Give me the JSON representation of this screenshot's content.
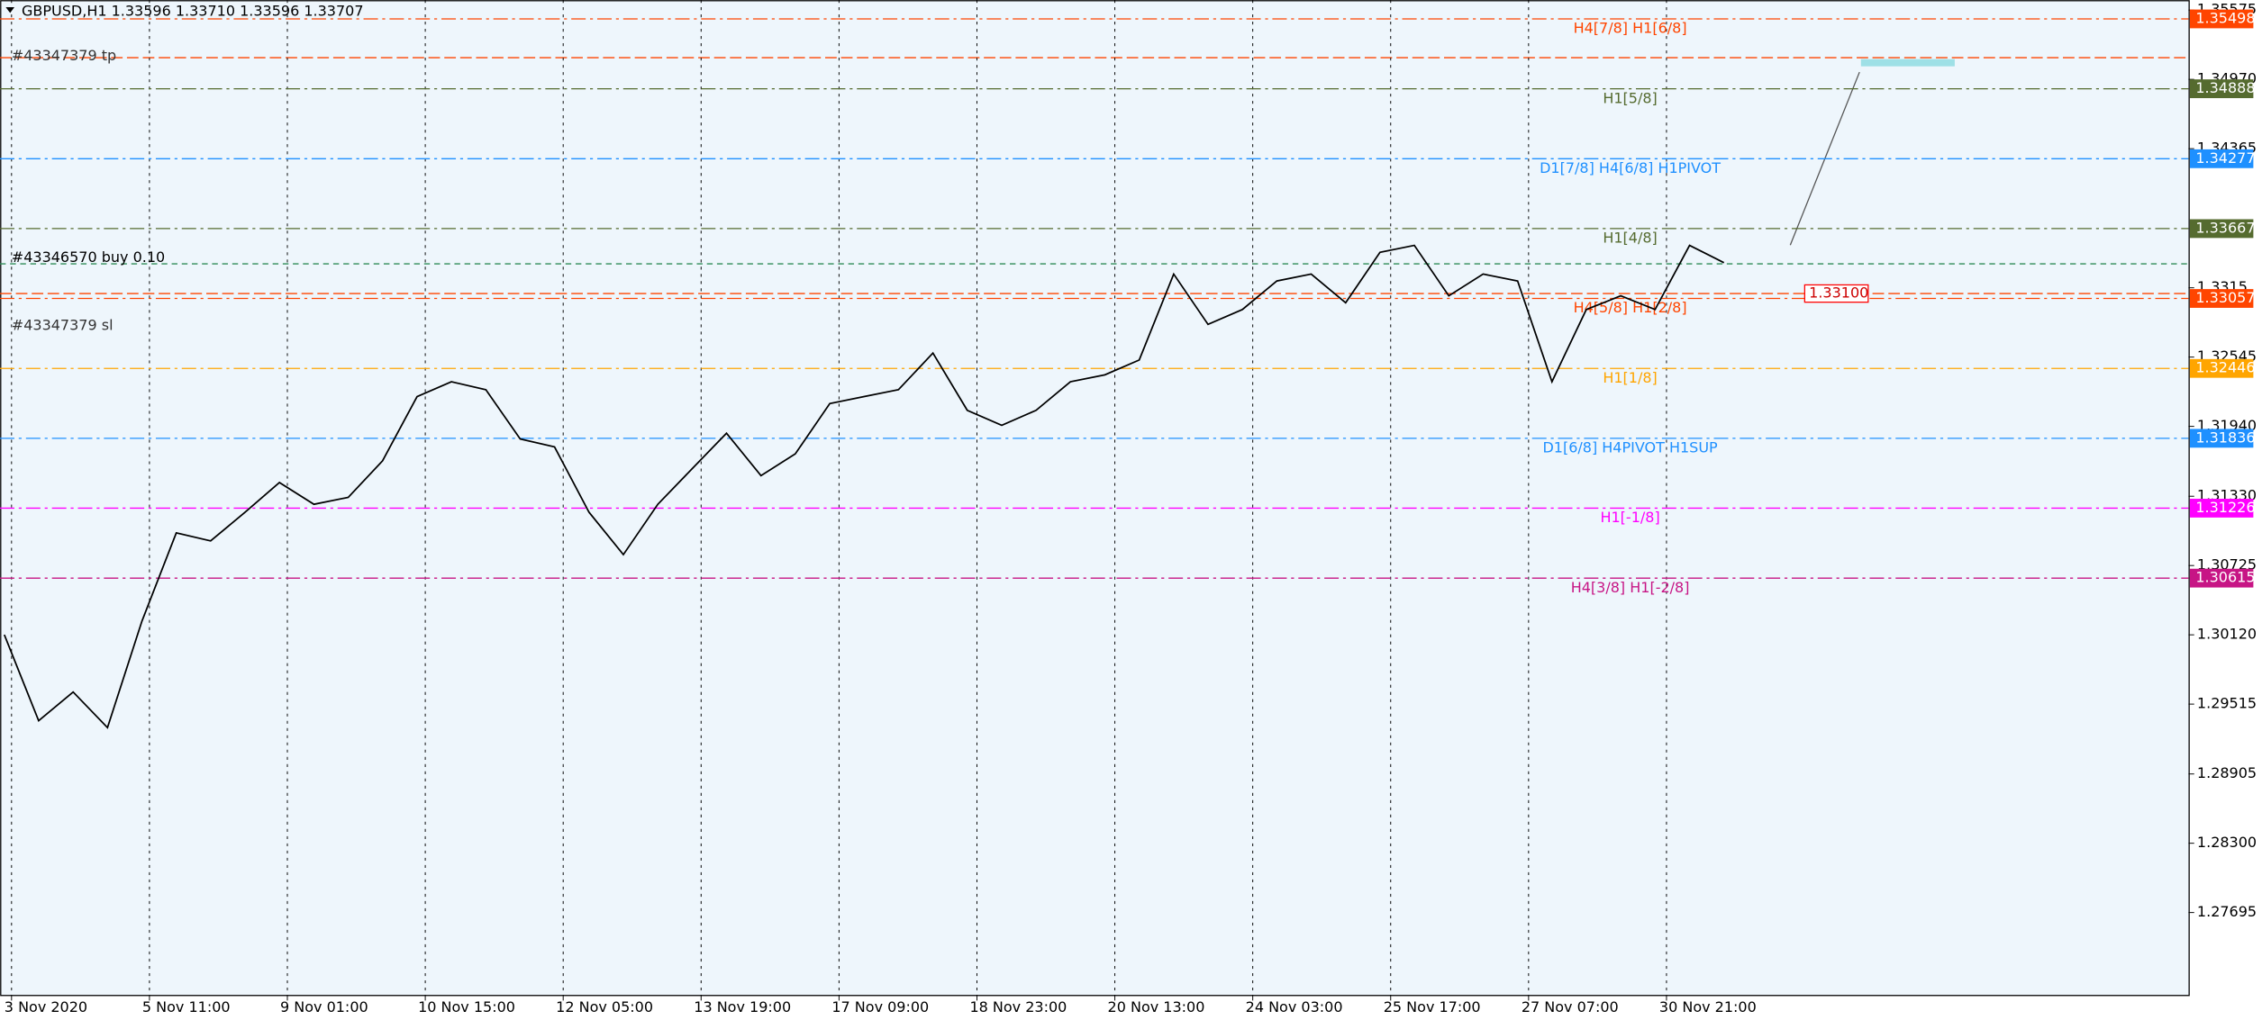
{
  "header": "GBPUSD,H1  1.33596 1.33710 1.33596 1.33707",
  "chart_data": {
    "type": "line",
    "ylim": [
      1.26977,
      1.35663
    ],
    "yticks": [
      1.35575,
      {
        "value": 1.3497,
        "label": "1.34970"
      },
      1.34365,
      1.3315,
      1.32545,
      {
        "value": 1.3194,
        "label": "1.31940"
      },
      {
        "value": 1.3133,
        "label": "1.31330"
      },
      1.30725,
      {
        "value": 1.3012,
        "label": "1.30120"
      },
      1.29515,
      1.28905,
      {
        "value": 1.283,
        "label": "1.28300"
      },
      1.27695
    ],
    "x_labels": [
      "3 Nov 2020",
      "5 Nov 11:00",
      "9 Nov 01:00",
      "10 Nov 15:00",
      "12 Nov 05:00",
      "13 Nov 19:00",
      "17 Nov 09:00",
      "18 Nov 23:00",
      "20 Nov 13:00",
      "24 Nov 03:00",
      "25 Nov 17:00",
      "27 Nov 07:00",
      "30 Nov 21:00"
    ],
    "color": "#000000",
    "values": [
      1.3012,
      1.2937,
      1.2962,
      1.2931,
      1.3024,
      1.3101,
      1.3094,
      1.3119,
      1.3145,
      1.3126,
      1.3132,
      1.3164,
      1.322,
      1.3233,
      1.3226,
      1.3183,
      1.3176,
      1.3119,
      1.3082,
      1.3126,
      1.3157,
      1.3188,
      1.3151,
      1.317,
      1.3214,
      1.322,
      1.3226,
      1.3258,
      1.3208,
      1.3195,
      1.3208,
      1.3233,
      1.3239,
      1.3252,
      1.3327,
      1.3283,
      1.3296,
      1.3321,
      1.3327,
      1.3302,
      1.3346,
      1.3352,
      1.3308,
      1.3327,
      1.3321,
      1.3233,
      1.3296,
      1.3308,
      1.3296,
      1.3352,
      1.3337
    ],
    "levels": [
      {
        "label": "H4[7/8] H1[6/8]",
        "value": 1.35498,
        "color": "#ff4500"
      },
      {
        "label": "H1[5/8]",
        "value": 1.34888,
        "color": "#556b2f"
      },
      {
        "label": "D1[7/8] H4[6/8] H1PIVOT",
        "value": 1.34277,
        "color": "#1e90ff"
      },
      {
        "label": "H1[4/8]",
        "value": 1.33667,
        "color": "#556b2f"
      },
      {
        "label": "H4[5/8] H1[2/8]",
        "value": 1.33057,
        "color": "#ff4500"
      },
      {
        "label": "H1[1/8]",
        "value": 1.32446,
        "color": "#ffa500"
      },
      {
        "label": "D1[6/8] H4PIVOT H1SUP",
        "value": 1.31836,
        "color": "#1e90ff"
      },
      {
        "label": "H1[-1/8]",
        "value": 1.31226,
        "color": "#ff00ff"
      },
      {
        "label": "H4[3/8] H1[-2/8]",
        "value": 1.30615,
        "color": "#c71585"
      }
    ],
    "orders": [
      "#43347379 tp",
      "#43346570 buy 0.10",
      "#43347379 sl"
    ],
    "sl_price": {
      "value": 1.331,
      "label": "1.33100"
    }
  }
}
